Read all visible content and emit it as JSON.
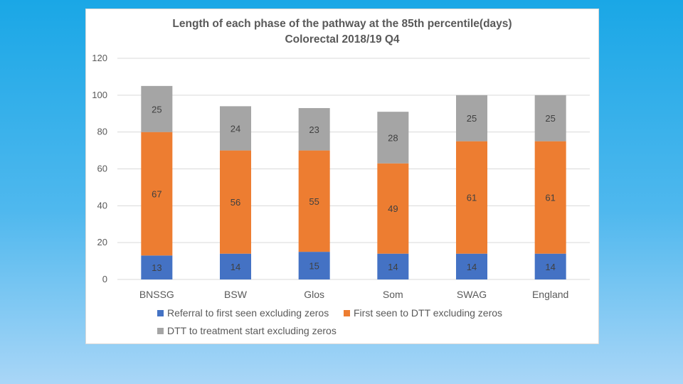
{
  "chart_data": {
    "type": "bar",
    "stacked": true,
    "title": "Length of each phase of the pathway at the 85th percentile(days)",
    "subtitle": "Colorectal 2018/19 Q4",
    "categories": [
      "BNSSG",
      "BSW",
      "Glos",
      "Som",
      "SWAG",
      "England"
    ],
    "series": [
      {
        "name": "Referral to first seen excluding zeros",
        "color": "#4472c4",
        "values": [
          13,
          14,
          15,
          14,
          14,
          14
        ]
      },
      {
        "name": "First seen to DTT excluding zeros",
        "color": "#ed7d31",
        "values": [
          67,
          56,
          55,
          49,
          61,
          61
        ]
      },
      {
        "name": "DTT to treatment start excluding zeros",
        "color": "#a5a5a5",
        "values": [
          25,
          24,
          23,
          28,
          25,
          25
        ]
      }
    ],
    "ylim": [
      0,
      120
    ],
    "yticks": [
      0,
      20,
      40,
      60,
      80,
      100,
      120
    ],
    "grid": true,
    "legend": "bottom",
    "xlabel": "",
    "ylabel": ""
  }
}
